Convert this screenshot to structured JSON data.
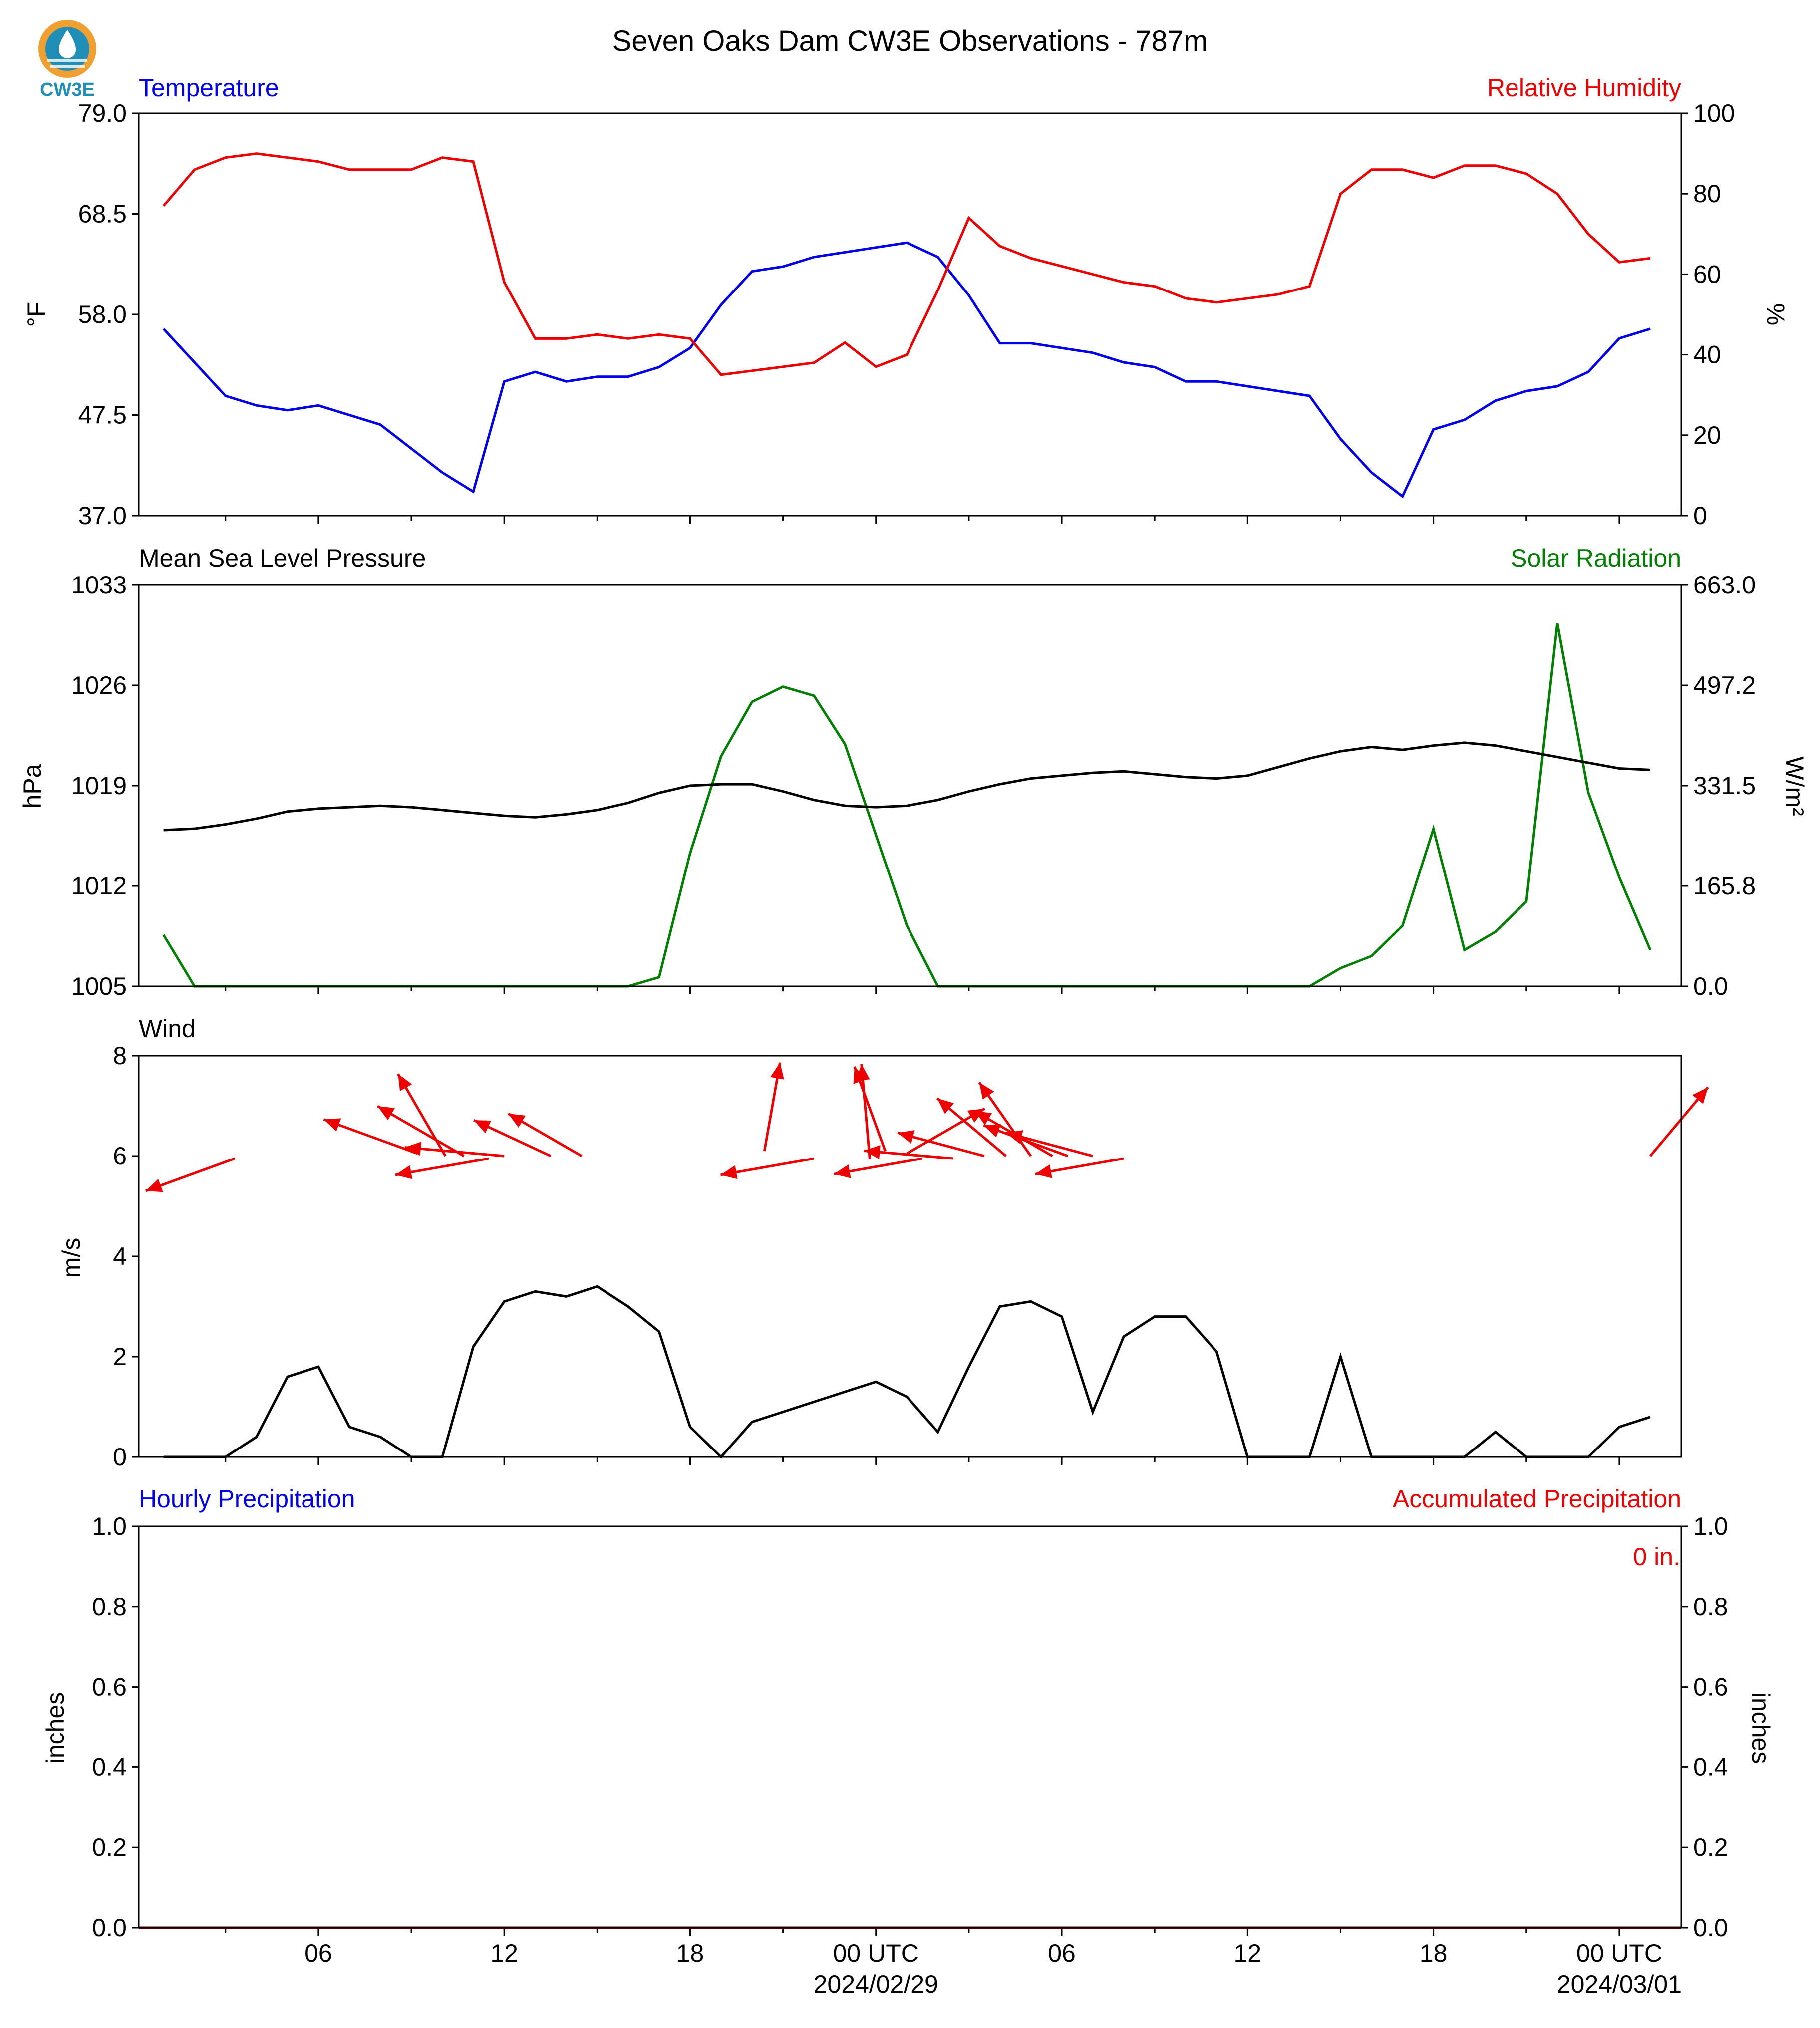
{
  "title": "Seven Oaks Dam CW3E Observations - 787m",
  "logo_text": "CW3E",
  "colors": {
    "blue": "#0000ee",
    "red": "#ee0000",
    "green": "#008000",
    "black": "#000000"
  },
  "chart_data": [
    {
      "type": "line",
      "panel": "temperature_humidity",
      "left_title": "Temperature",
      "right_title": "Relative Humidity",
      "ylabel": "°F",
      "ylabel_right": "%",
      "ylim": [
        37.0,
        79.0
      ],
      "ylim_right": [
        0,
        100
      ],
      "yticks": [
        "37.0",
        "47.5",
        "58.0",
        "68.5",
        "79.0"
      ],
      "yticks_right": [
        "0",
        "20",
        "40",
        "60",
        "80",
        "100"
      ],
      "x_hours": [
        0,
        1,
        2,
        3,
        4,
        5,
        6,
        7,
        8,
        9,
        10,
        11,
        12,
        13,
        14,
        15,
        16,
        17,
        18,
        19,
        20,
        21,
        22,
        23,
        24,
        25,
        26,
        27,
        28,
        29,
        30,
        31,
        32,
        33,
        34,
        35,
        36,
        37,
        38,
        39,
        40,
        41,
        42,
        43,
        44,
        45,
        46,
        47,
        48
      ],
      "series": [
        {
          "name": "Temperature",
          "axis": "left",
          "color": "#0000ee",
          "values": [
            56.5,
            53,
            49.5,
            48.5,
            48,
            48.5,
            47.5,
            46.5,
            44,
            41.5,
            39.5,
            51,
            52,
            51,
            51.5,
            51.5,
            52.5,
            54.5,
            59,
            62.5,
            63,
            64,
            64.5,
            65,
            65.5,
            64,
            60,
            55,
            55,
            54.5,
            54,
            53,
            52.5,
            51,
            51,
            50.5,
            50,
            49.5,
            45,
            41.5,
            39,
            46,
            47,
            49,
            50,
            50.5,
            52,
            55.5,
            56.5
          ]
        },
        {
          "name": "Relative Humidity",
          "axis": "right",
          "color": "#ee0000",
          "values": [
            77,
            86,
            89,
            90,
            89,
            88,
            86,
            86,
            86,
            89,
            88,
            58,
            44,
            44,
            45,
            44,
            45,
            44,
            35,
            36,
            37,
            38,
            43,
            37,
            40,
            56,
            74,
            67,
            64,
            62,
            60,
            58,
            57,
            54,
            53,
            54,
            55,
            57,
            80,
            86,
            86,
            84,
            87,
            87,
            85,
            80,
            70,
            63,
            64
          ]
        }
      ]
    },
    {
      "type": "line",
      "panel": "pressure_solar",
      "left_title": "Mean Sea Level Pressure",
      "right_title": "Solar Radiation",
      "ylabel": "hPa",
      "ylabel_right": "W/m²",
      "ylim": [
        1005,
        1033
      ],
      "ylim_right": [
        0.0,
        663.0
      ],
      "yticks": [
        "1005",
        "1012",
        "1019",
        "1026",
        "1033"
      ],
      "yticks_right": [
        "0.0",
        "165.8",
        "331.5",
        "497.2",
        "663.0"
      ],
      "x_hours": [
        0,
        1,
        2,
        3,
        4,
        5,
        6,
        7,
        8,
        9,
        10,
        11,
        12,
        13,
        14,
        15,
        16,
        17,
        18,
        19,
        20,
        21,
        22,
        23,
        24,
        25,
        26,
        27,
        28,
        29,
        30,
        31,
        32,
        33,
        34,
        35,
        36,
        37,
        38,
        39,
        40,
        41,
        42,
        43,
        44,
        45,
        46,
        47,
        48
      ],
      "series": [
        {
          "name": "Mean Sea Level Pressure",
          "axis": "left",
          "color": "#000000",
          "values": [
            1015.9,
            1016,
            1016.3,
            1016.7,
            1017.2,
            1017.4,
            1017.5,
            1017.6,
            1017.5,
            1017.3,
            1017.1,
            1016.9,
            1016.8,
            1017,
            1017.3,
            1017.8,
            1018.5,
            1019,
            1019.1,
            1019.1,
            1018.6,
            1018,
            1017.6,
            1017.5,
            1017.6,
            1018,
            1018.6,
            1019.1,
            1019.5,
            1019.7,
            1019.9,
            1020,
            1019.8,
            1019.6,
            1019.5,
            1019.7,
            1020.3,
            1020.9,
            1021.4,
            1021.7,
            1021.5,
            1021.8,
            1022,
            1021.8,
            1021.4,
            1021,
            1020.6,
            1020.2,
            1020.1
          ]
        },
        {
          "name": "Solar Radiation",
          "axis": "right",
          "color": "#008000",
          "values": [
            85,
            0,
            0,
            0,
            0,
            0,
            0,
            0,
            0,
            0,
            0,
            0,
            0,
            0,
            0,
            0,
            15,
            220,
            380,
            470,
            495,
            480,
            400,
            250,
            100,
            0,
            0,
            0,
            0,
            0,
            0,
            0,
            0,
            0,
            0,
            0,
            0,
            0,
            30,
            50,
            100,
            260,
            60,
            90,
            140,
            600,
            320,
            180,
            60
          ]
        }
      ]
    },
    {
      "type": "line",
      "panel": "wind",
      "left_title": "Wind",
      "ylabel": "m/s",
      "ylim": [
        0,
        8
      ],
      "yticks": [
        "0",
        "2",
        "4",
        "6",
        "8"
      ],
      "x_hours": [
        0,
        1,
        2,
        3,
        4,
        5,
        6,
        7,
        8,
        9,
        10,
        11,
        12,
        13,
        14,
        15,
        16,
        17,
        18,
        19,
        20,
        21,
        22,
        23,
        24,
        25,
        26,
        27,
        28,
        29,
        30,
        31,
        32,
        33,
        34,
        35,
        36,
        37,
        38,
        39,
        40,
        41,
        42,
        43,
        44,
        45,
        46,
        47,
        48
      ],
      "series": [
        {
          "name": "Wind",
          "axis": "left",
          "color": "#000000",
          "values": [
            0,
            0,
            0,
            0.4,
            1.6,
            1.8,
            0.6,
            0.4,
            0,
            0,
            2.2,
            3.1,
            3.3,
            3.2,
            3.4,
            3,
            2.5,
            0.6,
            0,
            0.7,
            0.9,
            1.1,
            1.3,
            1.5,
            1.2,
            0.5,
            1.8,
            3.0,
            3.1,
            2.8,
            0.9,
            2.4,
            2.8,
            2.8,
            2.1,
            0,
            0,
            0,
            2.0,
            0,
            0,
            0,
            0,
            0.5,
            0,
            0,
            0,
            0.6,
            0.8
          ]
        }
      ],
      "arrows_hours": [
        2.3,
        8.2,
        9.1,
        9.7,
        10.5,
        11.0,
        12.5,
        13.5,
        19.4,
        21.0,
        22.8,
        23.3,
        24.0,
        24.5,
        25.5,
        26.5,
        27.2,
        28.0,
        28.7,
        29.2,
        30.0,
        31.0,
        48.0
      ]
    },
    {
      "type": "line",
      "panel": "precipitation",
      "left_title": "Hourly Precipitation",
      "right_title": "Accumulated Precipitation",
      "ylabel": "inches",
      "ylabel_right": "inches",
      "ylim": [
        0.0,
        1.0
      ],
      "ylim_right": [
        0.0,
        1.0
      ],
      "yticks": [
        "0.0",
        "0.2",
        "0.4",
        "0.6",
        "0.8",
        "1.0"
      ],
      "yticks_right": [
        "0.0",
        "0.2",
        "0.4",
        "0.6",
        "0.8",
        "1.0"
      ],
      "annotation": "0 in.",
      "series": [
        {
          "name": "Accumulated Precipitation",
          "axis": "right",
          "color": "#8b0000",
          "values": [
            0,
            0
          ]
        }
      ]
    }
  ],
  "x_axis": {
    "ticks": [
      {
        "hour": 5,
        "label": "06"
      },
      {
        "hour": 11,
        "label": "12"
      },
      {
        "hour": 17,
        "label": "18"
      },
      {
        "hour": 23,
        "label": "00 UTC",
        "sublabel": "2024/02/29"
      },
      {
        "hour": 29,
        "label": "06"
      },
      {
        "hour": 35,
        "label": "12"
      },
      {
        "hour": 41,
        "label": "18"
      },
      {
        "hour": 47,
        "label": "00 UTC",
        "sublabel": "2024/03/01"
      }
    ],
    "minor_ticks_hours": [
      2,
      8,
      14,
      20,
      26,
      32,
      38,
      44
    ]
  }
}
